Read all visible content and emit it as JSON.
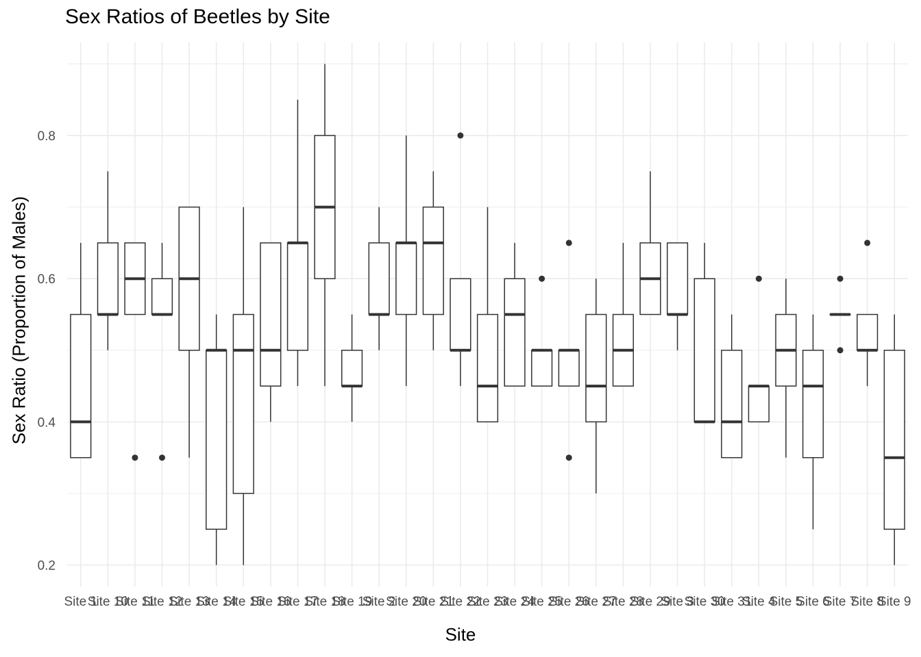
{
  "chart_data": {
    "type": "box",
    "title": "Sex Ratios of Beetles by Site",
    "xlabel": "Site",
    "ylabel": "Sex Ratio (Proportion of Males)",
    "ylim": [
      0.17,
      0.93
    ],
    "yticks": [
      0.2,
      0.4,
      0.6,
      0.8
    ],
    "ytick_labels": [
      "0.2",
      "0.4",
      "0.6",
      "0.8"
    ],
    "grid": true,
    "categories": [
      "Site 1",
      "Site 10",
      "Site 11",
      "Site 12",
      "Site 13",
      "Site 14",
      "Site 15",
      "Site 16",
      "Site 17",
      "Site 18",
      "Site 19",
      "Site 2",
      "Site 20",
      "Site 21",
      "Site 22",
      "Site 23",
      "Site 24",
      "Site 25",
      "Site 26",
      "Site 27",
      "Site 28",
      "Site 29",
      "Site 3",
      "Site 30",
      "Site 31",
      "Site 4",
      "Site 5",
      "Site 6",
      "Site 7",
      "Site 8",
      "Site 9"
    ],
    "boxes": [
      {
        "min": 0.35,
        "q1": 0.35,
        "median": 0.4,
        "q3": 0.55,
        "max": 0.65,
        "outliers": []
      },
      {
        "min": 0.5,
        "q1": 0.55,
        "median": 0.55,
        "q3": 0.65,
        "max": 0.75,
        "outliers": []
      },
      {
        "min": 0.55,
        "q1": 0.55,
        "median": 0.6,
        "q3": 0.65,
        "max": 0.65,
        "outliers": [
          0.35
        ]
      },
      {
        "min": 0.55,
        "q1": 0.55,
        "median": 0.55,
        "q3": 0.6,
        "max": 0.65,
        "outliers": [
          0.35
        ]
      },
      {
        "min": 0.35,
        "q1": 0.5,
        "median": 0.6,
        "q3": 0.7,
        "max": 0.7,
        "outliers": []
      },
      {
        "min": 0.2,
        "q1": 0.25,
        "median": 0.5,
        "q3": 0.5,
        "max": 0.55,
        "outliers": []
      },
      {
        "min": 0.2,
        "q1": 0.3,
        "median": 0.5,
        "q3": 0.55,
        "max": 0.7,
        "outliers": []
      },
      {
        "min": 0.4,
        "q1": 0.45,
        "median": 0.5,
        "q3": 0.65,
        "max": 0.65,
        "outliers": []
      },
      {
        "min": 0.45,
        "q1": 0.5,
        "median": 0.65,
        "q3": 0.65,
        "max": 0.85,
        "outliers": []
      },
      {
        "min": 0.45,
        "q1": 0.6,
        "median": 0.7,
        "q3": 0.8,
        "max": 0.9,
        "outliers": []
      },
      {
        "min": 0.4,
        "q1": 0.45,
        "median": 0.45,
        "q3": 0.5,
        "max": 0.55,
        "outliers": []
      },
      {
        "min": 0.5,
        "q1": 0.55,
        "median": 0.55,
        "q3": 0.65,
        "max": 0.7,
        "outliers": []
      },
      {
        "min": 0.45,
        "q1": 0.55,
        "median": 0.65,
        "q3": 0.65,
        "max": 0.8,
        "outliers": []
      },
      {
        "min": 0.5,
        "q1": 0.55,
        "median": 0.65,
        "q3": 0.7,
        "max": 0.75,
        "outliers": []
      },
      {
        "min": 0.45,
        "q1": 0.5,
        "median": 0.5,
        "q3": 0.6,
        "max": 0.6,
        "outliers": [
          0.8
        ]
      },
      {
        "min": 0.4,
        "q1": 0.4,
        "median": 0.45,
        "q3": 0.55,
        "max": 0.7,
        "outliers": []
      },
      {
        "min": 0.45,
        "q1": 0.45,
        "median": 0.55,
        "q3": 0.6,
        "max": 0.65,
        "outliers": []
      },
      {
        "min": 0.45,
        "q1": 0.45,
        "median": 0.5,
        "q3": 0.5,
        "max": 0.5,
        "outliers": [
          0.6
        ]
      },
      {
        "min": 0.45,
        "q1": 0.45,
        "median": 0.5,
        "q3": 0.5,
        "max": 0.5,
        "outliers": [
          0.65,
          0.35
        ]
      },
      {
        "min": 0.3,
        "q1": 0.4,
        "median": 0.45,
        "q3": 0.55,
        "max": 0.6,
        "outliers": []
      },
      {
        "min": 0.45,
        "q1": 0.45,
        "median": 0.5,
        "q3": 0.55,
        "max": 0.65,
        "outliers": []
      },
      {
        "min": 0.55,
        "q1": 0.55,
        "median": 0.6,
        "q3": 0.65,
        "max": 0.75,
        "outliers": []
      },
      {
        "min": 0.5,
        "q1": 0.55,
        "median": 0.55,
        "q3": 0.65,
        "max": 0.65,
        "outliers": []
      },
      {
        "min": 0.4,
        "q1": 0.4,
        "median": 0.4,
        "q3": 0.6,
        "max": 0.65,
        "outliers": []
      },
      {
        "min": 0.35,
        "q1": 0.35,
        "median": 0.4,
        "q3": 0.5,
        "max": 0.55,
        "outliers": []
      },
      {
        "min": 0.4,
        "q1": 0.4,
        "median": 0.45,
        "q3": 0.45,
        "max": 0.45,
        "outliers": [
          0.6
        ]
      },
      {
        "min": 0.35,
        "q1": 0.45,
        "median": 0.5,
        "q3": 0.55,
        "max": 0.6,
        "outliers": []
      },
      {
        "min": 0.25,
        "q1": 0.35,
        "median": 0.45,
        "q3": 0.5,
        "max": 0.55,
        "outliers": []
      },
      {
        "min": 0.55,
        "q1": 0.55,
        "median": 0.55,
        "q3": 0.55,
        "max": 0.55,
        "outliers": [
          0.6,
          0.5
        ]
      },
      {
        "min": 0.45,
        "q1": 0.5,
        "median": 0.5,
        "q3": 0.55,
        "max": 0.55,
        "outliers": [
          0.65
        ]
      },
      {
        "min": 0.2,
        "q1": 0.25,
        "median": 0.35,
        "q3": 0.5,
        "max": 0.55,
        "outliers": []
      }
    ],
    "colors": {
      "box_stroke": "#333333",
      "grid": "#ebebeb",
      "tick_text": "#4d4d4d",
      "background": "#ffffff"
    }
  }
}
